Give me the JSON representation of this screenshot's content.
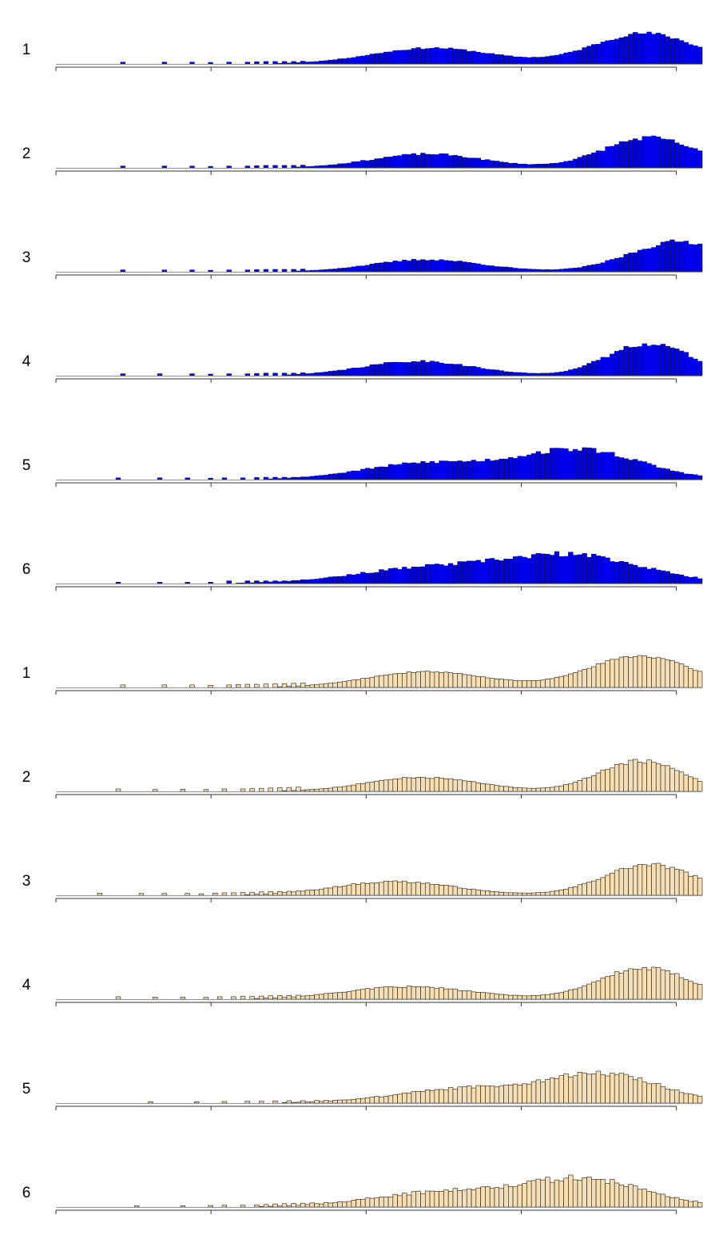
{
  "chart_data": {
    "type": "bar",
    "description_free": true,
    "bin_count": 140,
    "xlim": [
      0,
      140
    ],
    "ylim": [
      0,
      1
    ],
    "x_ticks": [
      0,
      33.6,
      67.2,
      100.8,
      134.4
    ],
    "grid": false,
    "legend": "none",
    "colors": {
      "group_a": "#0000ee",
      "group_b": "#f5deb3",
      "bar_edge": "#1a1a1a",
      "axis": "#333333"
    },
    "panels": [
      {
        "label": "1",
        "group": "group_a",
        "sparse": [
          [
            14,
            0.06
          ],
          [
            23,
            0.06
          ],
          [
            29,
            0.06
          ],
          [
            33,
            0.05
          ],
          [
            37,
            0.06
          ],
          [
            41,
            0.06
          ],
          [
            43,
            0.07
          ],
          [
            45,
            0.08
          ],
          [
            47,
            0.08
          ],
          [
            49,
            0.08
          ],
          [
            51,
            0.08
          ],
          [
            53,
            0.09
          ]
        ],
        "peaks": [
          [
            81,
            13,
            0.52
          ],
          [
            127,
            11,
            1.0
          ]
        ],
        "noise": 0.06,
        "seed": 11
      },
      {
        "label": "2",
        "group": "group_a",
        "sparse": [
          [
            14,
            0.06
          ],
          [
            23,
            0.06
          ],
          [
            29,
            0.06
          ],
          [
            33,
            0.05
          ],
          [
            37,
            0.06
          ],
          [
            41,
            0.06
          ],
          [
            43,
            0.07
          ],
          [
            45,
            0.08
          ],
          [
            47,
            0.08
          ],
          [
            49,
            0.08
          ],
          [
            51,
            0.08
          ],
          [
            53,
            0.09
          ]
        ],
        "peaks": [
          [
            80,
            12,
            0.45
          ],
          [
            128,
            10,
            0.98
          ]
        ],
        "noise": 0.08,
        "seed": 23
      },
      {
        "label": "3",
        "group": "group_a",
        "sparse": [
          [
            14,
            0.06
          ],
          [
            23,
            0.06
          ],
          [
            29,
            0.06
          ],
          [
            33,
            0.05
          ],
          [
            37,
            0.06
          ],
          [
            41,
            0.06
          ],
          [
            43,
            0.07
          ],
          [
            45,
            0.08
          ],
          [
            47,
            0.08
          ],
          [
            49,
            0.08
          ],
          [
            51,
            0.08
          ],
          [
            53,
            0.09
          ]
        ],
        "peaks": [
          [
            80,
            12,
            0.4
          ],
          [
            135,
            11,
            1.0
          ]
        ],
        "noise": 0.08,
        "seed": 37
      },
      {
        "label": "4",
        "group": "group_a",
        "sparse": [
          [
            14,
            0.06
          ],
          [
            22,
            0.06
          ],
          [
            29,
            0.06
          ],
          [
            33,
            0.05
          ],
          [
            37,
            0.06
          ],
          [
            41,
            0.06
          ],
          [
            43,
            0.07
          ],
          [
            45,
            0.08
          ],
          [
            47,
            0.08
          ],
          [
            49,
            0.08
          ],
          [
            51,
            0.08
          ],
          [
            53,
            0.09
          ]
        ],
        "peaks": [
          [
            78,
            12,
            0.45
          ],
          [
            128,
            9,
            1.0
          ]
        ],
        "noise": 0.08,
        "seed": 41
      },
      {
        "label": "5",
        "group": "group_a",
        "sparse": [
          [
            13,
            0.06
          ],
          [
            22,
            0.06
          ],
          [
            28,
            0.06
          ],
          [
            33,
            0.05
          ],
          [
            36,
            0.06
          ],
          [
            40,
            0.06
          ],
          [
            43,
            0.07
          ],
          [
            45,
            0.08
          ],
          [
            47,
            0.08
          ],
          [
            49,
            0.08
          ],
          [
            51,
            0.08
          ],
          [
            53,
            0.09
          ]
        ],
        "peaks": [
          [
            80,
            14,
            0.55
          ],
          [
            113,
            13,
            1.0
          ]
        ],
        "noise": 0.09,
        "seed": 53
      },
      {
        "label": "6",
        "group": "group_a",
        "sparse": [
          [
            13,
            0.05
          ],
          [
            22,
            0.05
          ],
          [
            28,
            0.05
          ],
          [
            33,
            0.05
          ],
          [
            37,
            0.1
          ],
          [
            41,
            0.1
          ],
          [
            43,
            0.1
          ],
          [
            45,
            0.1
          ],
          [
            47,
            0.1
          ],
          [
            49,
            0.1
          ],
          [
            51,
            0.1
          ],
          [
            53,
            0.12
          ]
        ],
        "peaks": [
          [
            80,
            16,
            0.55
          ],
          [
            112,
            15,
            1.0
          ]
        ],
        "noise": 0.1,
        "seed": 67
      },
      {
        "label": "1",
        "group": "group_b",
        "sparse": [
          [
            14,
            0.08
          ],
          [
            23,
            0.08
          ],
          [
            29,
            0.08
          ],
          [
            33,
            0.07
          ],
          [
            37,
            0.08
          ],
          [
            39,
            0.09
          ],
          [
            41,
            0.1
          ],
          [
            43,
            0.1
          ],
          [
            45,
            0.11
          ],
          [
            47,
            0.11
          ],
          [
            49,
            0.12
          ],
          [
            51,
            0.13
          ],
          [
            53,
            0.14
          ]
        ],
        "peaks": [
          [
            80,
            13,
            0.5
          ],
          [
            126,
            11,
            1.0
          ]
        ],
        "noise": 0.04,
        "seed": 71
      },
      {
        "label": "2",
        "group": "group_b",
        "sparse": [
          [
            13,
            0.08
          ],
          [
            21,
            0.06
          ],
          [
            27,
            0.07
          ],
          [
            32,
            0.06
          ],
          [
            36,
            0.08
          ],
          [
            40,
            0.08
          ],
          [
            42,
            0.09
          ],
          [
            44,
            0.1
          ],
          [
            46,
            0.11
          ],
          [
            48,
            0.12
          ],
          [
            50,
            0.13
          ],
          [
            52,
            0.14
          ]
        ],
        "peaks": [
          [
            79,
            12,
            0.46
          ],
          [
            126,
            9,
            1.0
          ]
        ],
        "noise": 0.07,
        "seed": 83
      },
      {
        "label": "3",
        "group": "group_b",
        "sparse": [
          [
            9,
            0.07
          ],
          [
            18,
            0.06
          ],
          [
            23,
            0.06
          ],
          [
            28,
            0.06
          ],
          [
            31,
            0.05
          ],
          [
            34,
            0.07
          ],
          [
            36,
            0.08
          ],
          [
            38,
            0.08
          ],
          [
            40,
            0.09
          ],
          [
            42,
            0.1
          ],
          [
            44,
            0.11
          ],
          [
            46,
            0.12
          ],
          [
            48,
            0.12
          ],
          [
            50,
            0.13
          ],
          [
            52,
            0.14
          ]
        ],
        "peaks": [
          [
            73,
            13,
            0.45
          ],
          [
            128,
            10,
            1.0
          ]
        ],
        "noise": 0.07,
        "seed": 97
      },
      {
        "label": "4",
        "group": "group_b",
        "sparse": [
          [
            13,
            0.08
          ],
          [
            21,
            0.07
          ],
          [
            27,
            0.07
          ],
          [
            32,
            0.06
          ],
          [
            35,
            0.08
          ],
          [
            38,
            0.08
          ],
          [
            40,
            0.09
          ],
          [
            42,
            0.09
          ],
          [
            44,
            0.1
          ],
          [
            46,
            0.11
          ],
          [
            48,
            0.12
          ],
          [
            50,
            0.12
          ],
          [
            52,
            0.13
          ]
        ],
        "peaks": [
          [
            76,
            14,
            0.4
          ],
          [
            127,
            10,
            1.0
          ]
        ],
        "noise": 0.07,
        "seed": 101
      },
      {
        "label": "5",
        "group": "group_b",
        "sparse": [
          [
            20,
            0.05
          ],
          [
            30,
            0.05
          ],
          [
            36,
            0.06
          ],
          [
            41,
            0.07
          ],
          [
            44,
            0.07
          ],
          [
            47,
            0.08
          ],
          [
            50,
            0.09
          ],
          [
            53,
            0.09
          ],
          [
            56,
            0.1
          ],
          [
            58,
            0.1
          ],
          [
            60,
            0.11
          ],
          [
            62,
            0.12
          ],
          [
            64,
            0.12
          ]
        ],
        "peaks": [
          [
            90,
            16,
            0.55
          ],
          [
            119,
            12,
            1.0
          ]
        ],
        "noise": 0.09,
        "seed": 113
      },
      {
        "label": "6",
        "group": "group_b",
        "sparse": [
          [
            17,
            0.05
          ],
          [
            27,
            0.05
          ],
          [
            33,
            0.06
          ],
          [
            36,
            0.07
          ],
          [
            40,
            0.07
          ],
          [
            43,
            0.08
          ],
          [
            45,
            0.1
          ],
          [
            47,
            0.12
          ],
          [
            49,
            0.13
          ],
          [
            51,
            0.14
          ],
          [
            53,
            0.15
          ],
          [
            55,
            0.16
          ],
          [
            58,
            0.17
          ],
          [
            61,
            0.18
          ],
          [
            63,
            0.2
          ]
        ],
        "peaks": [
          [
            85,
            16,
            0.6
          ],
          [
            115,
            13,
            1.0
          ]
        ],
        "noise": 0.12,
        "seed": 127
      }
    ]
  }
}
